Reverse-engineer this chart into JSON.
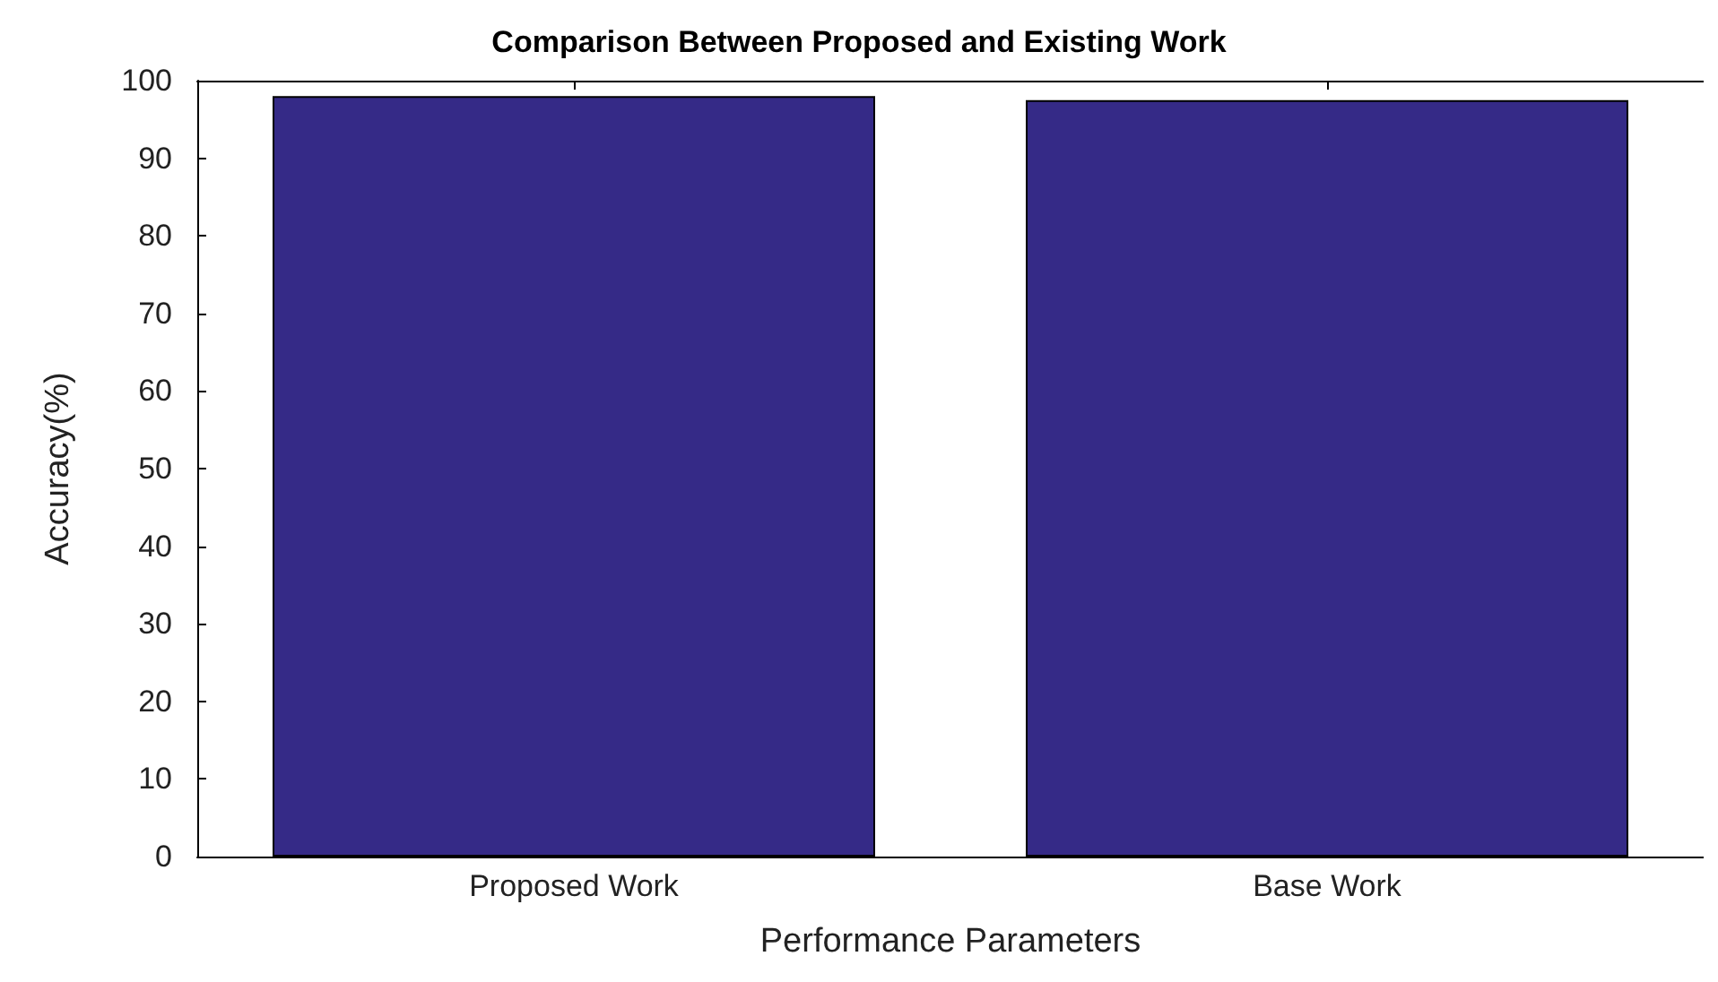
{
  "chart_data": {
    "type": "bar",
    "title": "Comparison Between Proposed and Existing Work",
    "xlabel": "Performance Parameters",
    "ylabel": "Accuracy(%)",
    "categories": [
      "Proposed Work",
      "Base Work"
    ],
    "values": [
      98,
      97.5
    ],
    "color": "#352a87",
    "ylim": [
      0,
      100
    ],
    "yticks": [
      0,
      10,
      20,
      30,
      40,
      50,
      60,
      70,
      80,
      90,
      100
    ],
    "grid": false
  }
}
